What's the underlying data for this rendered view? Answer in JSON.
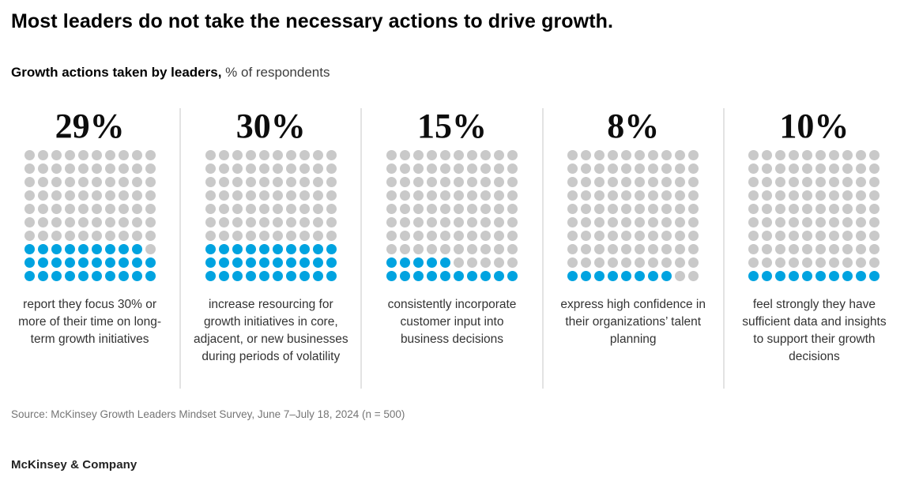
{
  "title": "Most leaders do not take the necessary actions to drive growth.",
  "subtitle": {
    "bold": "Growth actions taken by leaders,",
    "rest": " % of respondents"
  },
  "chart_data": {
    "type": "waffle",
    "title": "Growth actions taken by leaders",
    "unit": "% of respondents",
    "grid": {
      "rows": 10,
      "cols": 10,
      "dots_total": 100,
      "fill_order": "bottom-left"
    },
    "colors": {
      "filled": "#00a3e0",
      "empty": "#c9c9c9"
    },
    "series": [
      {
        "value": 29,
        "label": "29%",
        "description": "report they focus 30% or more of their time on long-term growth initiatives"
      },
      {
        "value": 30,
        "label": "30%",
        "description": "increase resourcing for growth initiatives in core, adjacent, or new businesses during periods of volatility"
      },
      {
        "value": 15,
        "label": "15%",
        "description": "consistently incorporate customer input into business decisions"
      },
      {
        "value": 8,
        "label": "8%",
        "description": "express high confidence in their organizations’ talent planning"
      },
      {
        "value": 10,
        "label": "10%",
        "description": "feel strongly they have sufficient data and insights to support their growth decisions"
      }
    ]
  },
  "source": "Source: McKinsey Growth Leaders Mindset Survey, June 7–July 18, 2024 (n = 500)",
  "footer": "McKinsey & Company"
}
